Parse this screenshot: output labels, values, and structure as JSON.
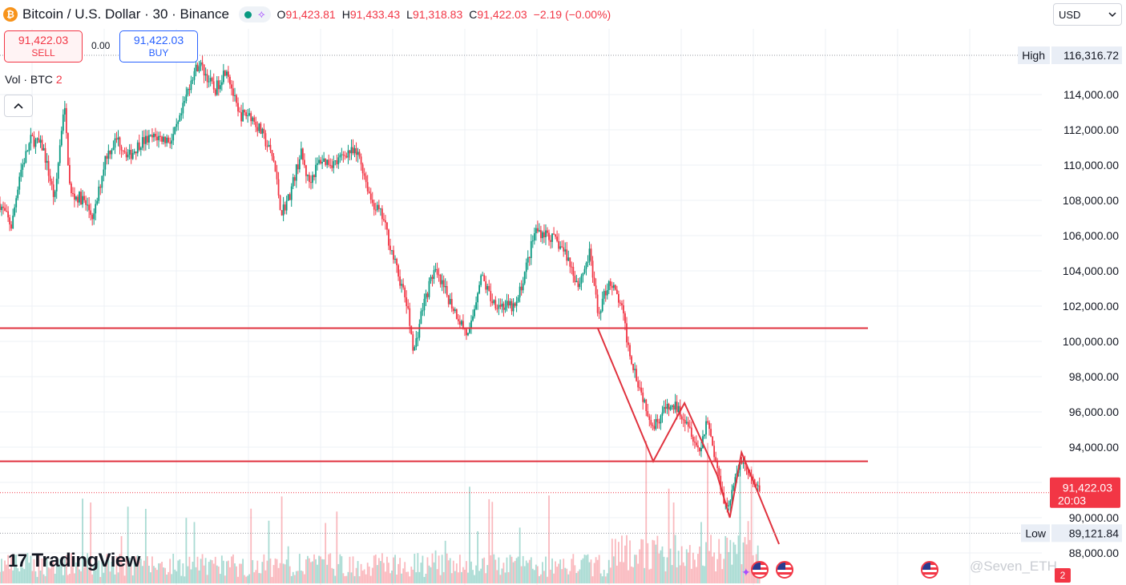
{
  "header": {
    "coin_symbol": "₿",
    "title": "Bitcoin / U.S. Dollar · 30 · Binance",
    "ohlc": {
      "o_label": "O",
      "o": "91,423.81",
      "h_label": "H",
      "h": "91,433.43",
      "l_label": "L",
      "l": "91,318.83",
      "c_label": "C",
      "c": "91,422.03",
      "change": "−2.19 (−0.00%)"
    },
    "status_icon": "green-dot",
    "hub_icon": "share-icon"
  },
  "trade": {
    "sell_price": "91,422.03",
    "sell_label": "SELL",
    "spread": "0.00",
    "buy_price": "91,422.03",
    "buy_label": "BUY"
  },
  "volume_legend": {
    "label": "Vol · BTC",
    "value": "2"
  },
  "collapse_icon": "chevron-up-icon",
  "currency": {
    "selected": "USD"
  },
  "brand": {
    "logo_mark": "17",
    "logo_text": "TradingView"
  },
  "watermark": "@Seven_ETH",
  "badge_count": "2",
  "colors": {
    "up": "#089981",
    "down": "#f23645",
    "level": "#e0323e",
    "grid": "#eef1f5"
  },
  "chart_data": {
    "type": "candlestick",
    "symbol": "BTCUSD",
    "interval": "30",
    "y_axis": {
      "ticks": [
        "88,000.00",
        "90,000.00",
        "92,000.00",
        "94,000.00",
        "96,000.00",
        "98,000.00",
        "100,000.00",
        "102,000.00",
        "104,000.00",
        "106,000.00",
        "108,000.00",
        "110,000.00",
        "112,000.00",
        "114,000.00"
      ],
      "tick_values": [
        88000,
        90000,
        92000,
        94000,
        96000,
        98000,
        100000,
        102000,
        104000,
        106000,
        108000,
        110000,
        112000,
        114000
      ],
      "range": [
        87400,
        117600
      ]
    },
    "markers": {
      "high": {
        "label": "High",
        "value": 116316.72,
        "text": "116,316.72"
      },
      "low": {
        "label": "Low",
        "value": 89121.84,
        "text": "89,121.84"
      },
      "last": {
        "value": 91422.03,
        "text": "91,422.03",
        "countdown": "20:03"
      }
    },
    "horizontal_levels": [
      100750,
      93200
    ],
    "trend_lines": [
      [
        [
          0.765,
          100750
        ],
        [
          0.836,
          93200
        ],
        [
          0.876,
          96500
        ],
        [
          0.918,
          92400
        ],
        [
          0.934,
          90000
        ],
        [
          0.949,
          93700
        ],
        [
          0.997,
          88500
        ]
      ]
    ],
    "price_path": [
      [
        0.0,
        107800
      ],
      [
        0.015,
        106500
      ],
      [
        0.025,
        109500
      ],
      [
        0.04,
        111500
      ],
      [
        0.055,
        111000
      ],
      [
        0.07,
        108000
      ],
      [
        0.082,
        113600
      ],
      [
        0.09,
        108300
      ],
      [
        0.105,
        108100
      ],
      [
        0.12,
        107000
      ],
      [
        0.135,
        110500
      ],
      [
        0.15,
        111500
      ],
      [
        0.165,
        110500
      ],
      [
        0.18,
        111300
      ],
      [
        0.2,
        111600
      ],
      [
        0.22,
        111400
      ],
      [
        0.23,
        112500
      ],
      [
        0.245,
        115000
      ],
      [
        0.255,
        115800
      ],
      [
        0.265,
        115000
      ],
      [
        0.275,
        114200
      ],
      [
        0.29,
        115600
      ],
      [
        0.305,
        112800
      ],
      [
        0.32,
        112900
      ],
      [
        0.335,
        111800
      ],
      [
        0.35,
        110300
      ],
      [
        0.36,
        107300
      ],
      [
        0.37,
        108200
      ],
      [
        0.385,
        110700
      ],
      [
        0.395,
        109000
      ],
      [
        0.41,
        110300
      ],
      [
        0.43,
        110100
      ],
      [
        0.445,
        110800
      ],
      [
        0.46,
        110500
      ],
      [
        0.475,
        108000
      ],
      [
        0.49,
        107000
      ],
      [
        0.505,
        104500
      ],
      [
        0.52,
        102200
      ],
      [
        0.53,
        99400
      ],
      [
        0.54,
        101800
      ],
      [
        0.555,
        104000
      ],
      [
        0.57,
        102800
      ],
      [
        0.585,
        101500
      ],
      [
        0.6,
        100200
      ],
      [
        0.615,
        103800
      ],
      [
        0.63,
        102300
      ],
      [
        0.645,
        102000
      ],
      [
        0.66,
        101900
      ],
      [
        0.675,
        104500
      ],
      [
        0.685,
        106300
      ],
      [
        0.7,
        106100
      ],
      [
        0.715,
        105500
      ],
      [
        0.725,
        104900
      ],
      [
        0.74,
        103200
      ],
      [
        0.755,
        105000
      ],
      [
        0.765,
        101500
      ],
      [
        0.78,
        103500
      ],
      [
        0.795,
        102000
      ],
      [
        0.805,
        99500
      ],
      [
        0.82,
        97200
      ],
      [
        0.836,
        95200
      ],
      [
        0.85,
        96100
      ],
      [
        0.865,
        96300
      ],
      [
        0.88,
        95500
      ],
      [
        0.895,
        93700
      ],
      [
        0.905,
        95700
      ],
      [
        0.918,
        92700
      ],
      [
        0.93,
        90500
      ],
      [
        0.94,
        91900
      ],
      [
        0.949,
        93400
      ],
      [
        0.96,
        92200
      ],
      [
        0.972,
        91422
      ]
    ]
  }
}
